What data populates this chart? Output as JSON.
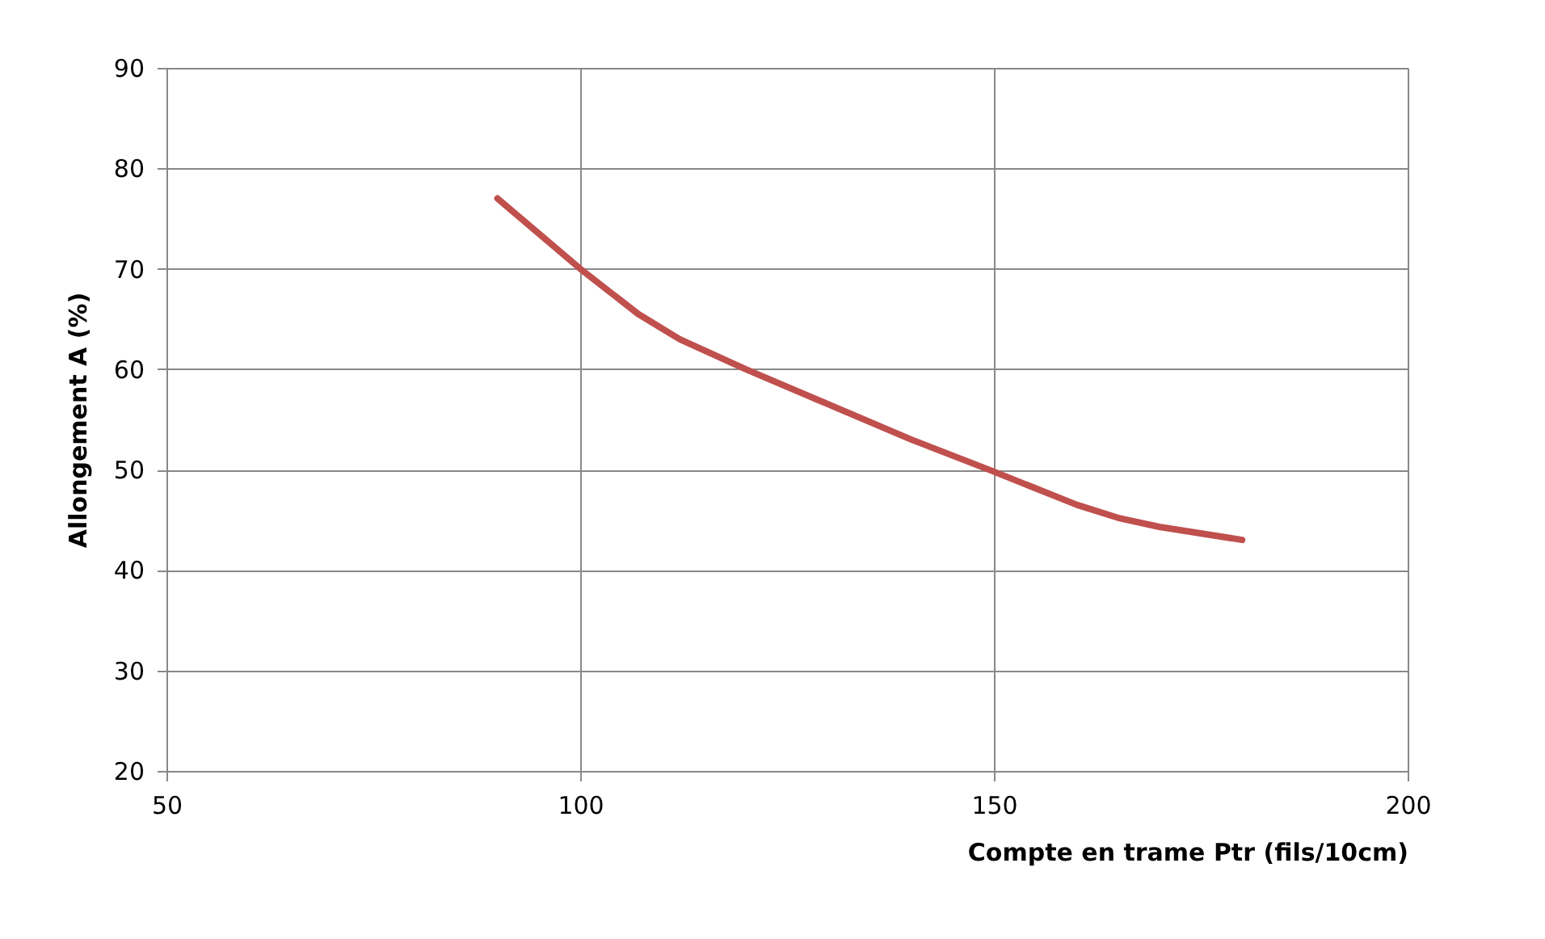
{
  "chart_data": {
    "type": "line",
    "xlabel": "Compte en trame  Ptr  (fils/10cm)",
    "ylabel": "Allongement  A (%)",
    "x": [
      90,
      100,
      107,
      112,
      120,
      130,
      140,
      150,
      160,
      165,
      170,
      180
    ],
    "series": [
      {
        "color": "#c0504d",
        "values": [
          77,
          70,
          65.5,
          63,
          60,
          56.5,
          53,
          49.8,
          46.5,
          45.2,
          44.3,
          43
        ]
      }
    ],
    "xlim": [
      50,
      200
    ],
    "xticks": [
      50,
      100,
      150,
      200
    ],
    "ylim": [
      20,
      90
    ],
    "yticks": [
      20,
      30,
      40,
      50,
      60,
      70,
      80,
      90
    ],
    "grid": true,
    "marker": "none",
    "line_style": "solid"
  }
}
